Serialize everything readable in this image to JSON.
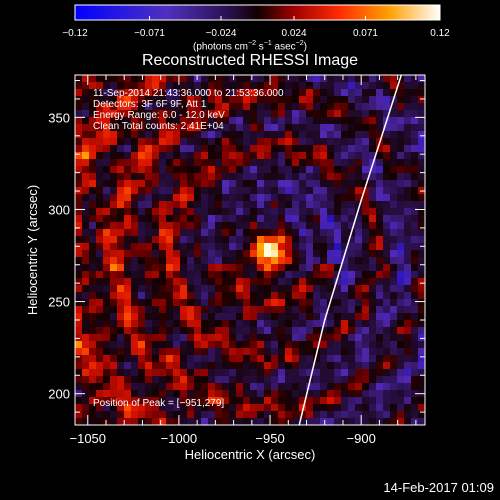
{
  "chart_data": {
    "type": "heatmap",
    "title": "Reconstructed RHESSI Image",
    "xlabel": "Heliocentric X (arcsec)",
    "ylabel": "Heliocentric Y (arcsec)",
    "xlim": [
      -1057,
      -865
    ],
    "ylim": [
      183,
      373
    ],
    "x_ticks": [
      -1050,
      -1000,
      -950,
      -900
    ],
    "y_ticks": [
      200,
      250,
      300,
      350
    ],
    "x_tick_labels": [
      "−1050",
      "−1000",
      "−950",
      "−900"
    ],
    "y_tick_labels": [
      "200",
      "250",
      "300",
      "350"
    ],
    "colorbar": {
      "range": [
        -0.12,
        0.12
      ],
      "tick_labels": [
        "−0.12",
        "−0.071",
        "−0.024",
        "0.024",
        "0.071",
        "0.12"
      ],
      "tick_values": [
        -0.12,
        -0.071,
        -0.024,
        0.024,
        0.071,
        0.12
      ],
      "units_text": "(photons cm",
      "units_sup1": "−2",
      "units_mid": " s",
      "units_sup2": "−1",
      "units_mid2": " asec",
      "units_sup3": "−2",
      "units_end": ")"
    },
    "peak": {
      "x": -951,
      "y": 279
    },
    "limb_curve": [
      [
        -934,
        183
      ],
      [
        -920,
        240
      ],
      [
        -900,
        305
      ],
      [
        -878,
        373
      ]
    ],
    "annotations": [
      "11-Sep-2014 21:43:36.000 to 21:53:36.000",
      "Detectors: 3F 6F 9F, Att 1",
      "Energy Range: 6.0 - 12.0 keV",
      "Clean    Total counts: 2.41E+04"
    ],
    "peak_label": "Position of Peak = [−951,279]",
    "footer": "14-Feb-2017 01:09"
  }
}
